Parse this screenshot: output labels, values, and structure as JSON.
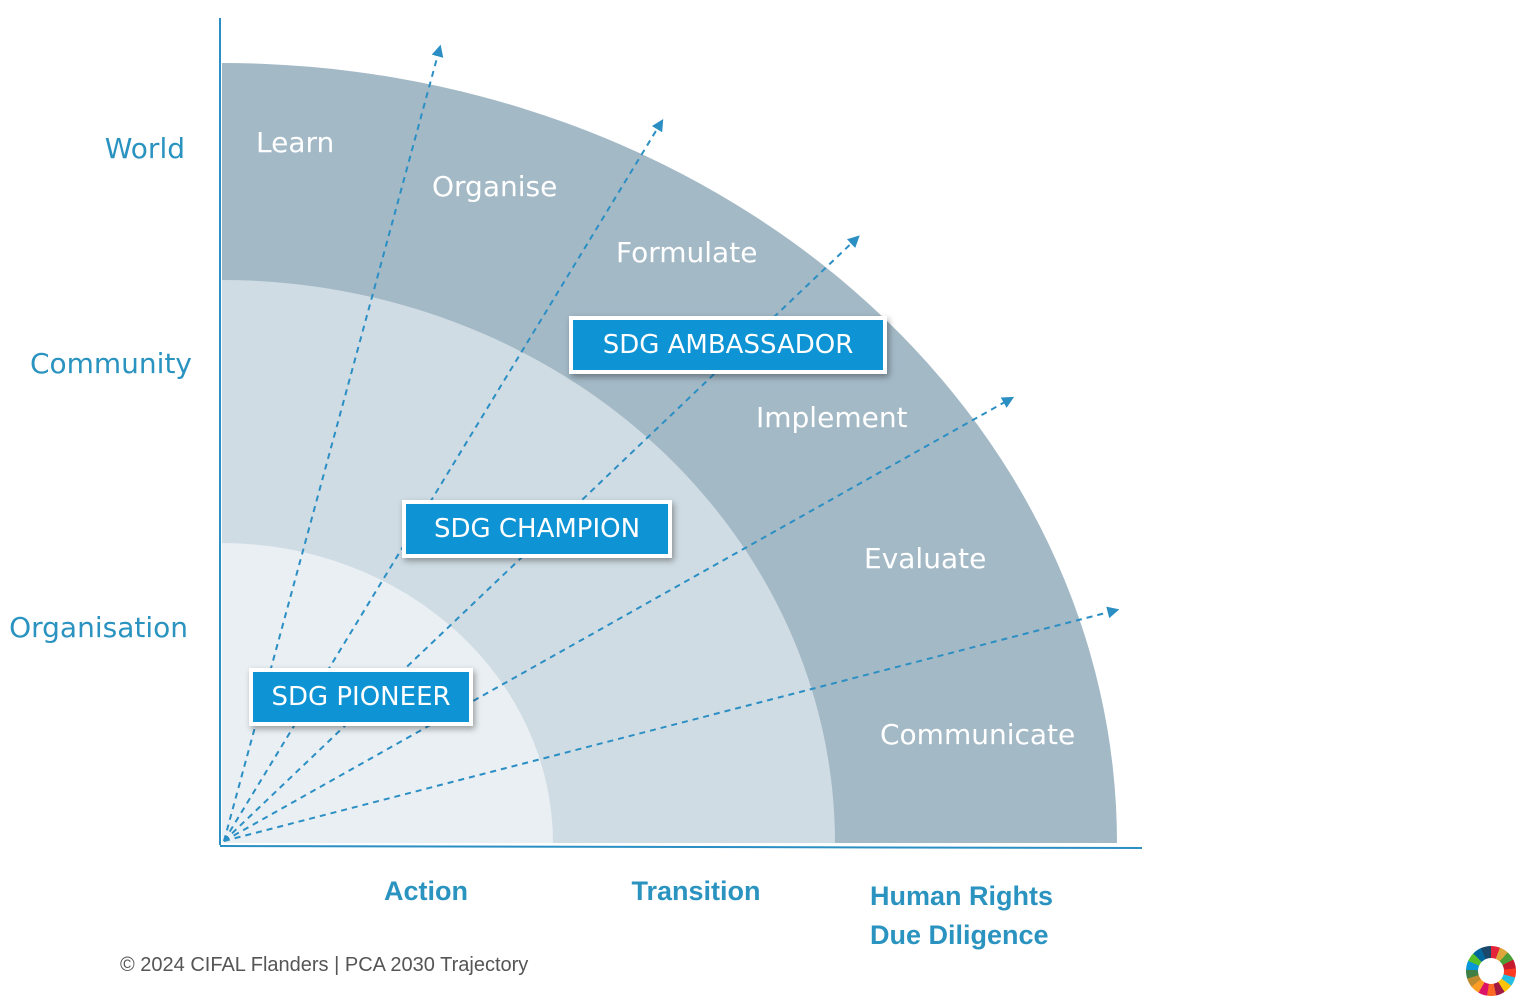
{
  "y_axis": {
    "labels": [
      "World",
      "Community",
      "Organisation"
    ]
  },
  "x_axis": {
    "labels": [
      "Action",
      "Transition",
      "Human Rights\nDue Diligence"
    ]
  },
  "steps": [
    "Learn",
    "Organise",
    "Formulate",
    "Implement",
    "Evaluate",
    "Communicate"
  ],
  "badges": [
    "SDG AMBASSADOR",
    "SDG CHAMPION",
    "SDG PIONEER"
  ],
  "footer": "© 2024 CIFAL Flanders | PCA 2030 Trajectory"
}
